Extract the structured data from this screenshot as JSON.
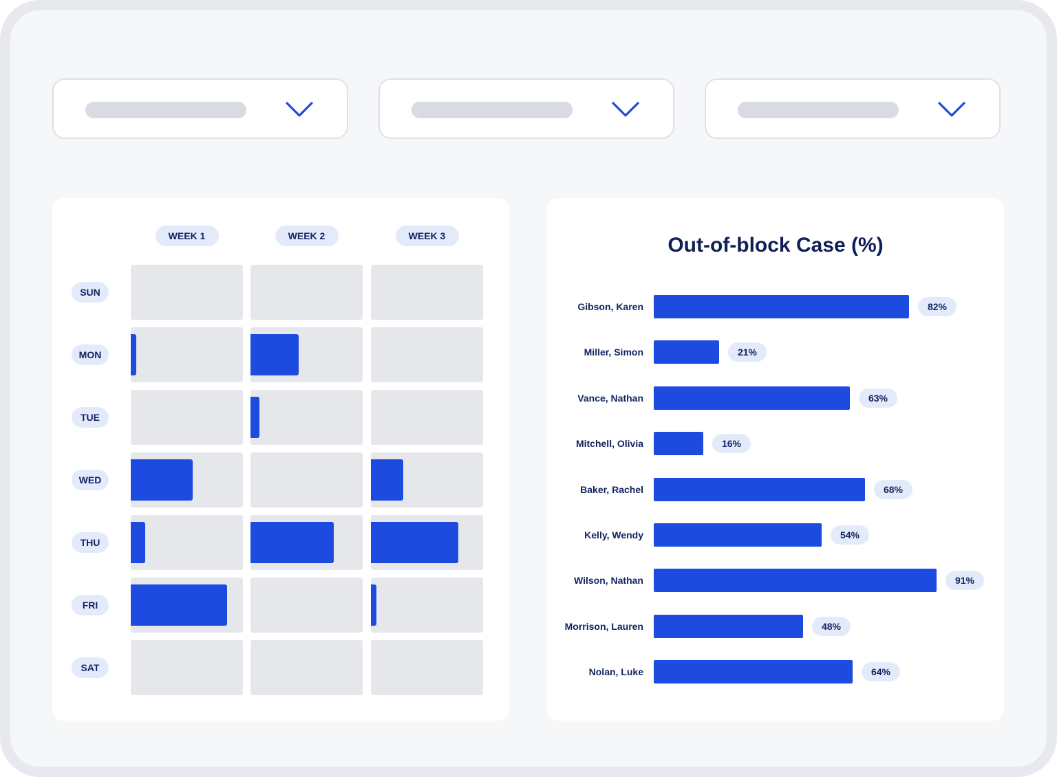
{
  "filters": [
    {
      "name": "filter-1",
      "icon": "chevron-down-icon"
    },
    {
      "name": "filter-2",
      "icon": "chevron-down-icon"
    },
    {
      "name": "filter-3",
      "icon": "chevron-down-icon"
    }
  ],
  "colors": {
    "accent": "#1d4adf",
    "cell_bg": "#e5e7eb",
    "pill_bg": "#e3ebfb",
    "text_dark": "#122460"
  },
  "chart_data": [
    {
      "type": "heatmap",
      "title": "",
      "columns": [
        "WEEK 1",
        "WEEK 2",
        "WEEK 3"
      ],
      "rows": [
        "SUN",
        "MON",
        "TUE",
        "WED",
        "THU",
        "FRI",
        "SAT"
      ],
      "values": [
        [
          0,
          0,
          0
        ],
        [
          0.05,
          0.43,
          0
        ],
        [
          0,
          0.08,
          0
        ],
        [
          0.55,
          0,
          0.29
        ],
        [
          0.13,
          0.74,
          0.78
        ],
        [
          0.86,
          0,
          0.05
        ],
        [
          0,
          0,
          0
        ]
      ],
      "value_note": "fraction of cell width filled"
    },
    {
      "type": "bar",
      "orientation": "horizontal",
      "title": "Out-of-block Case (%)",
      "categories": [
        "Gibson, Karen",
        "Miller, Simon",
        "Vance, Nathan",
        "Mitchell, Olivia",
        "Baker, Rachel",
        "Kelly, Wendy",
        "Wilson, Nathan",
        "Morrison, Lauren",
        "Nolan, Luke"
      ],
      "values": [
        82,
        21,
        63,
        16,
        68,
        54,
        91,
        48,
        64
      ],
      "labels": [
        "82%",
        "21%",
        "63%",
        "16%",
        "68%",
        "54%",
        "91%",
        "48%",
        "64%"
      ],
      "xlim": [
        0,
        100
      ]
    }
  ]
}
